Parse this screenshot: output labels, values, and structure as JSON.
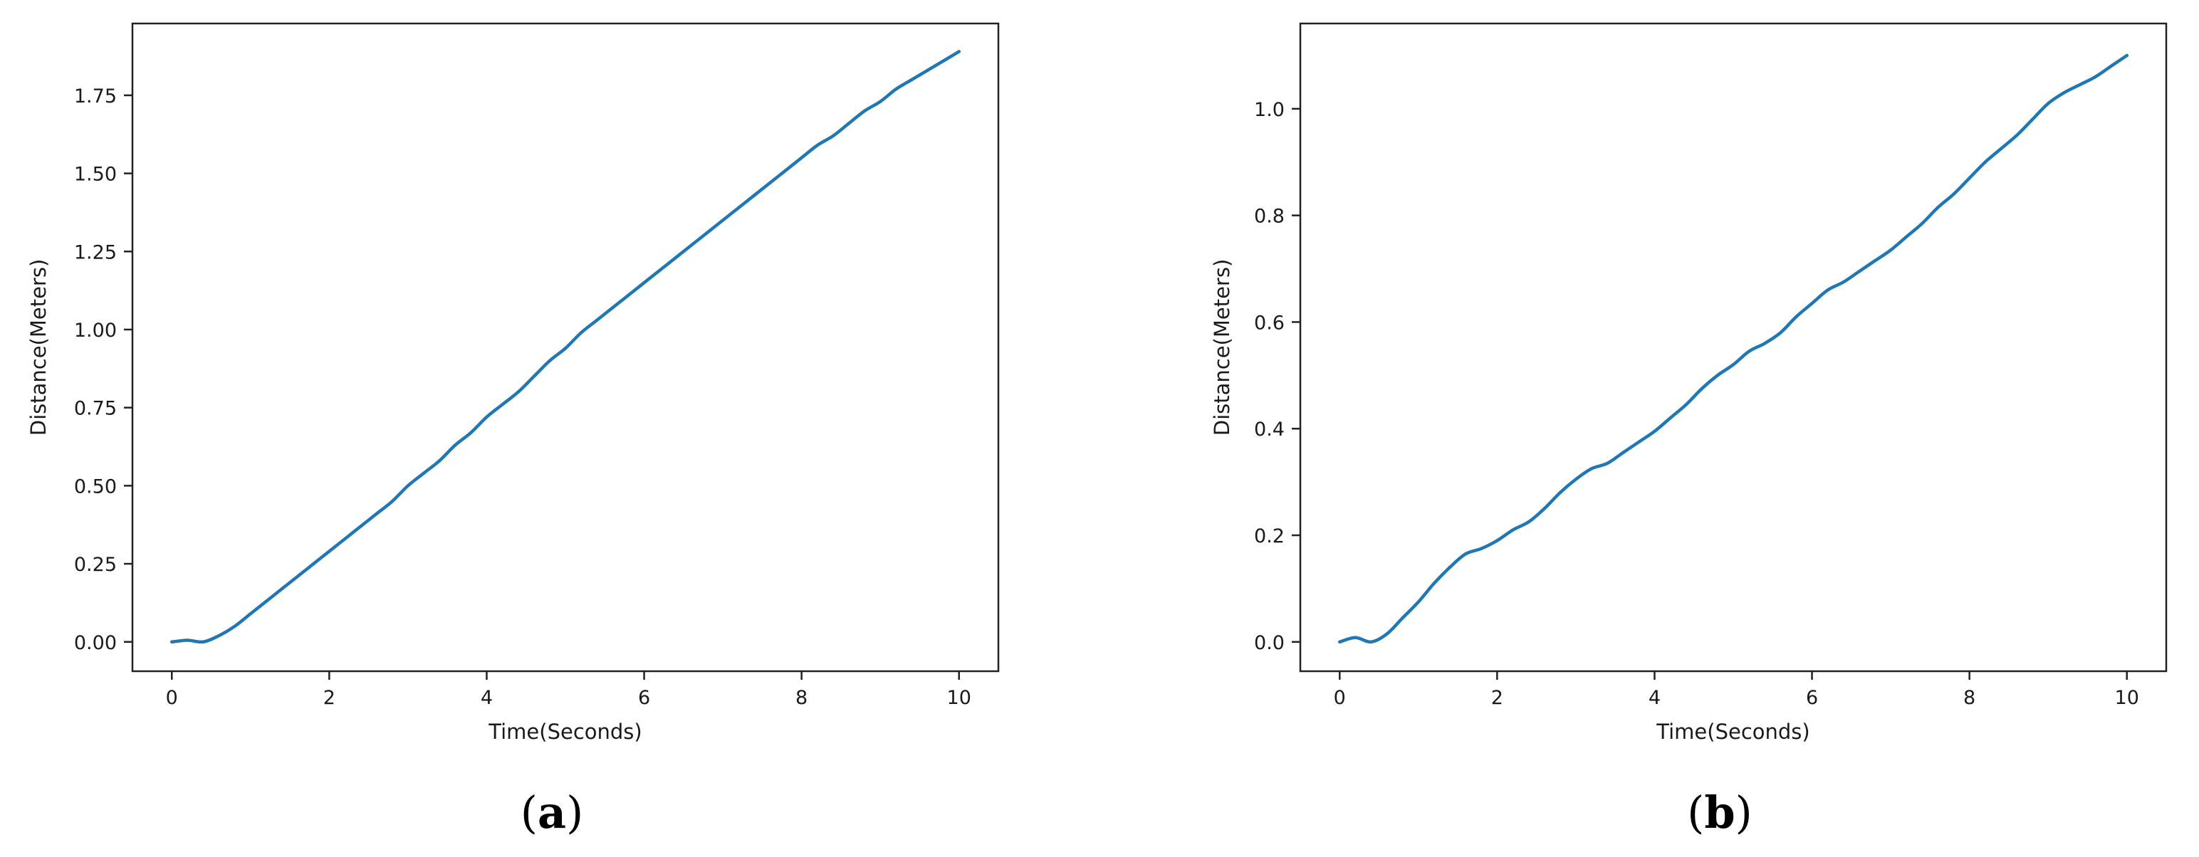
{
  "chart_data": [
    {
      "type": "line",
      "panel_label": "a",
      "xlabel": "Time(Seconds)",
      "ylabel": "Distance(Meters)",
      "xlim": [
        -0.5,
        10.5
      ],
      "ylim": [
        -0.094,
        1.98
      ],
      "xticks": [
        0,
        2,
        4,
        6,
        8,
        10
      ],
      "xtick_labels": [
        "0",
        "2",
        "4",
        "6",
        "8",
        "10"
      ],
      "yticks": [
        0,
        0.25,
        0.5,
        0.75,
        1.0,
        1.25,
        1.5,
        1.75
      ],
      "ytick_labels": [
        "0.00",
        "0.25",
        "0.50",
        "0.75",
        "1.00",
        "1.25",
        "1.50",
        "1.75"
      ],
      "grid": false,
      "legend": false,
      "color": "#1f77b4",
      "series": [
        {
          "x": [
            0,
            0.2,
            0.4,
            0.6,
            0.8,
            1.0,
            1.2,
            1.4,
            1.6,
            1.8,
            2.0,
            2.2,
            2.4,
            2.6,
            2.8,
            3.0,
            3.2,
            3.4,
            3.6,
            3.8,
            4.0,
            4.2,
            4.4,
            4.6,
            4.8,
            5.0,
            5.2,
            5.4,
            5.6,
            5.8,
            6.0,
            6.2,
            6.4,
            6.6,
            6.8,
            7.0,
            7.2,
            7.4,
            7.6,
            7.8,
            8.0,
            8.2,
            8.4,
            8.6,
            8.8,
            9.0,
            9.2,
            9.4,
            9.6,
            9.8,
            10.0
          ],
          "y": [
            0.0,
            0.005,
            0.0,
            0.02,
            0.05,
            0.09,
            0.13,
            0.17,
            0.21,
            0.25,
            0.29,
            0.33,
            0.37,
            0.41,
            0.45,
            0.5,
            0.54,
            0.58,
            0.63,
            0.67,
            0.72,
            0.76,
            0.8,
            0.85,
            0.9,
            0.94,
            0.99,
            1.03,
            1.07,
            1.11,
            1.15,
            1.19,
            1.23,
            1.27,
            1.31,
            1.35,
            1.39,
            1.43,
            1.47,
            1.51,
            1.55,
            1.59,
            1.62,
            1.66,
            1.7,
            1.73,
            1.77,
            1.8,
            1.83,
            1.86,
            1.89
          ]
        }
      ]
    },
    {
      "type": "line",
      "panel_label": "b",
      "xlabel": "Time(Seconds)",
      "ylabel": "Distance(Meters)",
      "xlim": [
        -0.5,
        10.5
      ],
      "ylim": [
        -0.055,
        1.16
      ],
      "xticks": [
        0,
        2,
        4,
        6,
        8,
        10
      ],
      "xtick_labels": [
        "0",
        "2",
        "4",
        "6",
        "8",
        "10"
      ],
      "yticks": [
        0,
        0.2,
        0.4,
        0.6,
        0.8,
        1.0
      ],
      "ytick_labels": [
        "0.0",
        "0.2",
        "0.4",
        "0.6",
        "0.8",
        "1.0"
      ],
      "grid": false,
      "legend": false,
      "color": "#1f77b4",
      "series": [
        {
          "x": [
            0,
            0.2,
            0.4,
            0.6,
            0.8,
            1.0,
            1.2,
            1.4,
            1.6,
            1.8,
            2.0,
            2.2,
            2.4,
            2.6,
            2.8,
            3.0,
            3.2,
            3.4,
            3.6,
            3.8,
            4.0,
            4.2,
            4.4,
            4.6,
            4.8,
            5.0,
            5.2,
            5.4,
            5.6,
            5.8,
            6.0,
            6.2,
            6.4,
            6.6,
            6.8,
            7.0,
            7.2,
            7.4,
            7.6,
            7.8,
            8.0,
            8.2,
            8.4,
            8.6,
            8.8,
            9.0,
            9.2,
            9.4,
            9.6,
            9.8,
            10.0
          ],
          "y": [
            0.0,
            0.008,
            0.0,
            0.015,
            0.045,
            0.075,
            0.11,
            0.14,
            0.165,
            0.175,
            0.19,
            0.21,
            0.225,
            0.25,
            0.28,
            0.305,
            0.325,
            0.335,
            0.355,
            0.375,
            0.395,
            0.42,
            0.445,
            0.475,
            0.5,
            0.52,
            0.545,
            0.56,
            0.58,
            0.61,
            0.635,
            0.66,
            0.675,
            0.695,
            0.715,
            0.735,
            0.76,
            0.785,
            0.815,
            0.84,
            0.87,
            0.9,
            0.925,
            0.95,
            0.98,
            1.01,
            1.03,
            1.045,
            1.06,
            1.08,
            1.1
          ]
        }
      ]
    }
  ]
}
